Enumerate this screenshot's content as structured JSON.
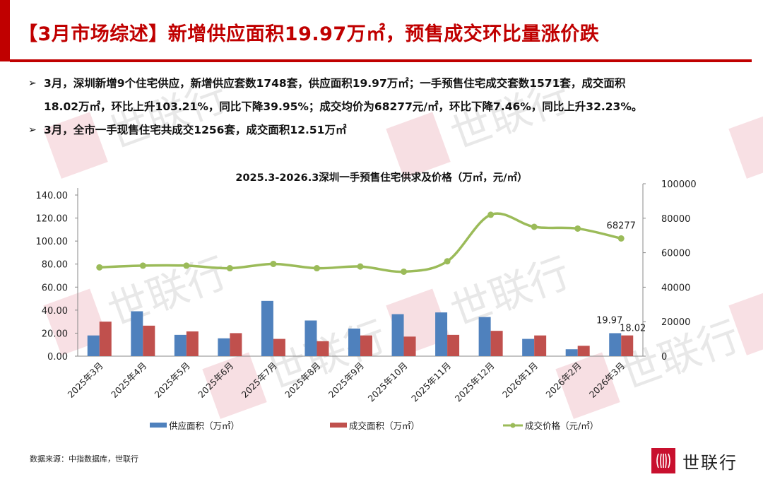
{
  "header": {
    "title": "【3月市场综述】新增供应面积19.97万㎡，预售成交环比量涨价跌",
    "accent_color": "#c00000"
  },
  "bullets": [
    {
      "marker": "➢",
      "line1": "3月，深圳新增9个住宅供应，新增供应套数1748套，供应面积19.97万㎡；一手预售住宅成交套数1571套，成交面积",
      "line2": "18.02万㎡，环比上升103.21%，同比下降39.95%；成交均价为68277元/㎡，环比下降7.46%，同比上升32.23%。"
    },
    {
      "marker": "➢",
      "line1": "3月，全市一手现售住宅共成交1256套，成交面积12.51万㎡"
    }
  ],
  "watermark": {
    "text": "世联行"
  },
  "chart_data": {
    "type": "bar",
    "title": "2025.3-2026.3深圳一手预售住宅供求及价格（万㎡，元/㎡）",
    "categories": [
      "2025年3月",
      "2025年4月",
      "2025年5月",
      "2025年6月",
      "2025年7月",
      "2025年8月",
      "2025年9月",
      "2025年10月",
      "2025年11月",
      "2025年12月",
      "2026年1月",
      "2026年2月",
      "2026年3月"
    ],
    "series": [
      {
        "name": "供应面积（万㎡）",
        "type": "bar",
        "axis": "left",
        "color": "#4f81bd",
        "values": [
          18.0,
          39.0,
          18.5,
          15.5,
          48.0,
          31.0,
          24.0,
          36.5,
          38.0,
          34.0,
          15.0,
          6.0,
          19.97
        ]
      },
      {
        "name": "成交面积（万㎡）",
        "type": "bar",
        "axis": "left",
        "color": "#c0504d",
        "values": [
          30.0,
          26.5,
          21.5,
          20.0,
          15.0,
          13.0,
          18.0,
          17.0,
          18.5,
          22.0,
          18.0,
          9.0,
          18.02
        ]
      },
      {
        "name": "成交价格（元/㎡）",
        "type": "line",
        "axis": "right",
        "color": "#9bbb59",
        "values": [
          51500,
          52500,
          52500,
          51000,
          53500,
          51000,
          52000,
          49000,
          55000,
          82000,
          75000,
          74000,
          68277
        ]
      }
    ],
    "data_labels": [
      {
        "series": 0,
        "index": 12,
        "text": "19.97"
      },
      {
        "series": 1,
        "index": 12,
        "text": "18.02"
      },
      {
        "series": 2,
        "index": 12,
        "text": "68277"
      }
    ],
    "y_left": {
      "min": 0,
      "max": 140,
      "ticks": [
        "0.00",
        "20.00",
        "40.00",
        "60.00",
        "80.00",
        "100.00",
        "120.00",
        "140.00"
      ]
    },
    "y_right": {
      "min": 0,
      "max": 100000,
      "ticks": [
        "0",
        "20000",
        "40000",
        "60000",
        "80000",
        "100000"
      ]
    },
    "grid": false,
    "legend_position": "bottom"
  },
  "footer": {
    "source": "数据来源：中指数据库，世联行",
    "logo_text": "世联行",
    "logo_color": "#c8102e"
  }
}
